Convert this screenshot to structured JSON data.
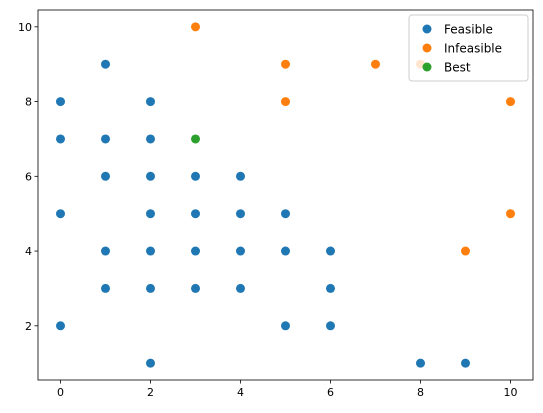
{
  "chart_data": {
    "type": "scatter",
    "title": "",
    "xlabel": "",
    "ylabel": "",
    "xlim": [
      -0.5,
      10.5
    ],
    "ylim": [
      0.55,
      10.45
    ],
    "xticks": [
      0,
      2,
      4,
      6,
      8,
      10
    ],
    "yticks": [
      2,
      4,
      6,
      8,
      10
    ],
    "grid": false,
    "legend_position": "top-right",
    "series": [
      {
        "name": "Feasible",
        "color": "#1f77b4",
        "points": [
          [
            0,
            8
          ],
          [
            0,
            7
          ],
          [
            0,
            5
          ],
          [
            0,
            2
          ],
          [
            1,
            9
          ],
          [
            1,
            7
          ],
          [
            1,
            6
          ],
          [
            1,
            4
          ],
          [
            1,
            3
          ],
          [
            2,
            8
          ],
          [
            2,
            7
          ],
          [
            2,
            6
          ],
          [
            2,
            5
          ],
          [
            2,
            4
          ],
          [
            2,
            3
          ],
          [
            2,
            1
          ],
          [
            3,
            6
          ],
          [
            3,
            5
          ],
          [
            3,
            4
          ],
          [
            3,
            3
          ],
          [
            4,
            6
          ],
          [
            4,
            5
          ],
          [
            4,
            4
          ],
          [
            4,
            3
          ],
          [
            5,
            5
          ],
          [
            5,
            4
          ],
          [
            5,
            2
          ],
          [
            6,
            4
          ],
          [
            6,
            3
          ],
          [
            6,
            2
          ],
          [
            8,
            1
          ],
          [
            9,
            1
          ]
        ]
      },
      {
        "name": "Infeasible",
        "color": "#ff7f0e",
        "points": [
          [
            3,
            10
          ],
          [
            5,
            9
          ],
          [
            5,
            8
          ],
          [
            7,
            9
          ],
          [
            8,
            9
          ],
          [
            9,
            4
          ],
          [
            10,
            8
          ],
          [
            10,
            5
          ]
        ]
      },
      {
        "name": "Best",
        "color": "#2ca02c",
        "points": [
          [
            3,
            7
          ]
        ]
      }
    ]
  }
}
